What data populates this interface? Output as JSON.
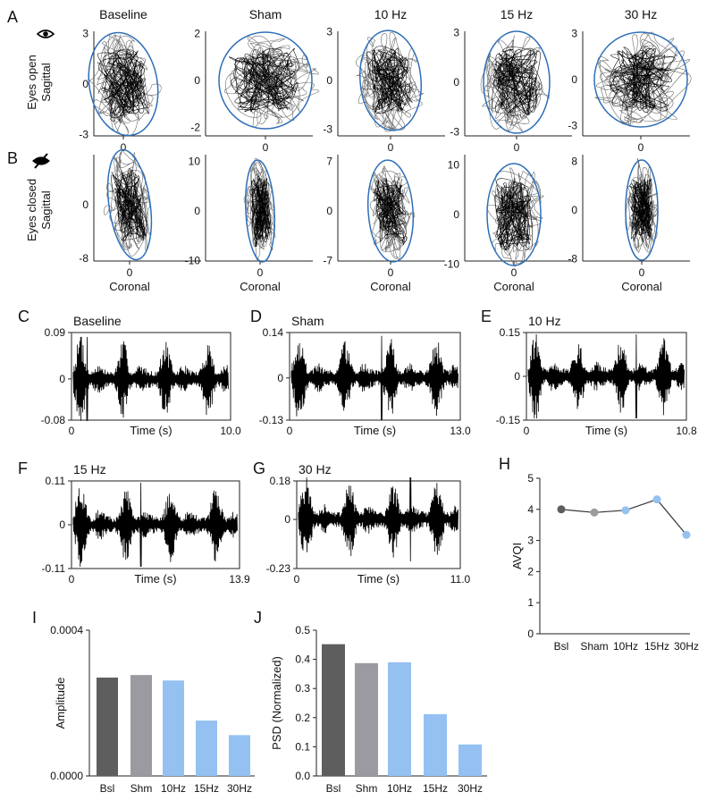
{
  "panel_labels": {
    "A": "A",
    "B": "B",
    "C": "C",
    "D": "D",
    "E": "E",
    "F": "F",
    "G": "G",
    "H": "H",
    "I": "I",
    "J": "J"
  },
  "row_labels": {
    "eyes_open": "Eyes open",
    "eyes_closed": "Eyes closed",
    "sagittal": "Sagittal",
    "coronal": "Coronal"
  },
  "icons": {
    "eyes_open": "eye-icon",
    "eyes_closed": "eye-slash-icon"
  },
  "colors": {
    "ellipse": "#2e6fb7",
    "baseline": "#5e5e5e",
    "sham": "#9a9aa0",
    "stim": "#94c1f2",
    "trace": "#000000"
  },
  "chart_data": [
    {
      "id": "A",
      "type": "scatter",
      "description_row": "Eyes open",
      "panels": [
        {
          "title": "Baseline",
          "x_ticks": [
            "0"
          ],
          "y_ticks": [
            "3",
            "0",
            "-3"
          ],
          "ylim": [
            -3,
            3
          ]
        },
        {
          "title": "Sham",
          "x_ticks": [
            "0"
          ],
          "y_ticks": [
            "2",
            "0",
            "-2"
          ],
          "ylim": [
            -2,
            2
          ]
        },
        {
          "title": "10 Hz",
          "x_ticks": [
            "0"
          ],
          "y_ticks": [
            "3",
            "0",
            "-3"
          ],
          "ylim": [
            -3,
            3
          ]
        },
        {
          "title": "15 Hz",
          "x_ticks": [
            "0"
          ],
          "y_ticks": [
            "3",
            "0",
            "-3"
          ],
          "ylim": [
            -3,
            3
          ]
        },
        {
          "title": "30 Hz",
          "x_ticks": [
            "0"
          ],
          "y_ticks": [
            "3",
            "0",
            "-3"
          ],
          "ylim": [
            -3,
            3
          ]
        }
      ],
      "xlabel": "",
      "ylabel": "Sagittal"
    },
    {
      "id": "B",
      "type": "scatter",
      "description_row": "Eyes closed",
      "panels": [
        {
          "x_ticks": [
            "0"
          ],
          "y_ticks": [
            "0",
            "-8"
          ],
          "ylim": [
            -8,
            8
          ]
        },
        {
          "x_ticks": [
            "0"
          ],
          "y_ticks": [
            "10",
            "0",
            "-10"
          ],
          "ylim": [
            -10,
            10
          ]
        },
        {
          "x_ticks": [
            "0"
          ],
          "y_ticks": [
            "7",
            "0",
            "-7"
          ],
          "ylim": [
            -7,
            7
          ]
        },
        {
          "x_ticks": [
            "0"
          ],
          "y_ticks": [
            "10",
            "0",
            "-10"
          ],
          "ylim": [
            -10,
            10
          ]
        },
        {
          "x_ticks": [
            "0"
          ],
          "y_ticks": [
            "8",
            "0",
            "-8"
          ],
          "ylim": [
            -8,
            8
          ]
        }
      ],
      "xlabel": "Coronal",
      "ylabel": "Sagittal"
    },
    {
      "id": "C",
      "type": "line",
      "title": "Baseline",
      "xlabel": "Time (s)",
      "x_ticks": [
        "0",
        "10.0"
      ],
      "y_ticks": [
        "0.09",
        "0",
        "-0.08"
      ],
      "xlim": [
        0,
        10.0
      ],
      "ylim": [
        -0.08,
        0.09
      ]
    },
    {
      "id": "D",
      "type": "line",
      "title": "Sham",
      "xlabel": "Time (s)",
      "x_ticks": [
        "0",
        "13.0"
      ],
      "y_ticks": [
        "0.14",
        "0",
        "-0.13"
      ],
      "xlim": [
        0,
        13.0
      ],
      "ylim": [
        -0.13,
        0.14
      ]
    },
    {
      "id": "E",
      "type": "line",
      "title": "10 Hz",
      "xlabel": "Time (s)",
      "x_ticks": [
        "0",
        "10.8"
      ],
      "y_ticks": [
        "0.15",
        "0",
        "-0.15"
      ],
      "xlim": [
        0,
        10.8
      ],
      "ylim": [
        -0.15,
        0.15
      ]
    },
    {
      "id": "F",
      "type": "line",
      "title": "15 Hz",
      "xlabel": "Time (s)",
      "x_ticks": [
        "0",
        "13.9"
      ],
      "y_ticks": [
        "0.11",
        "0",
        "-0.11"
      ],
      "xlim": [
        0,
        13.9
      ],
      "ylim": [
        -0.11,
        0.11
      ]
    },
    {
      "id": "G",
      "type": "line",
      "title": "30 Hz",
      "xlabel": "Time (s)",
      "x_ticks": [
        "0",
        "11.0"
      ],
      "y_ticks": [
        "0.18",
        "0",
        "-0.23"
      ],
      "xlim": [
        0,
        11.0
      ],
      "ylim": [
        -0.23,
        0.18
      ]
    },
    {
      "id": "H",
      "type": "line",
      "title": "",
      "ylabel": "AVQI",
      "xlabel": "",
      "categories": [
        "Bsl",
        "Sham",
        "10Hz",
        "15Hz",
        "30Hz"
      ],
      "values": [
        4.0,
        3.9,
        3.97,
        4.32,
        3.18
      ],
      "point_colors": [
        "#5e5e5e",
        "#9a9aa0",
        "#94c1f2",
        "#94c1f2",
        "#94c1f2"
      ],
      "ylim": [
        0,
        5
      ],
      "y_ticks": [
        "0",
        "1",
        "2",
        "3",
        "4",
        "5"
      ]
    },
    {
      "id": "I",
      "type": "bar",
      "title": "",
      "ylabel": "Amplitude",
      "xlabel": "",
      "categories": [
        "Bsl",
        "Shm",
        "10Hz",
        "15Hz",
        "30Hz"
      ],
      "values": [
        0.00027,
        0.000277,
        0.000262,
        0.000152,
        0.000112
      ],
      "bar_colors": [
        "#5e5e5e",
        "#9a9aa0",
        "#94c1f2",
        "#94c1f2",
        "#94c1f2"
      ],
      "ylim": [
        0,
        0.0004
      ],
      "y_ticks": [
        "0.0004",
        "0.0000"
      ]
    },
    {
      "id": "J",
      "type": "bar",
      "title": "",
      "ylabel": "PSD (Normalized)",
      "xlabel": "",
      "categories": [
        "Bsl",
        "Shm",
        "10Hz",
        "15Hz",
        "30Hz"
      ],
      "values": [
        0.452,
        0.387,
        0.39,
        0.212,
        0.108
      ],
      "bar_colors": [
        "#5e5e5e",
        "#9a9aa0",
        "#94c1f2",
        "#94c1f2",
        "#94c1f2"
      ],
      "ylim": [
        0,
        0.5
      ],
      "y_ticks": [
        "0.5",
        "0.4",
        "0.3",
        "0.2",
        "0.1",
        "0.0"
      ]
    }
  ]
}
